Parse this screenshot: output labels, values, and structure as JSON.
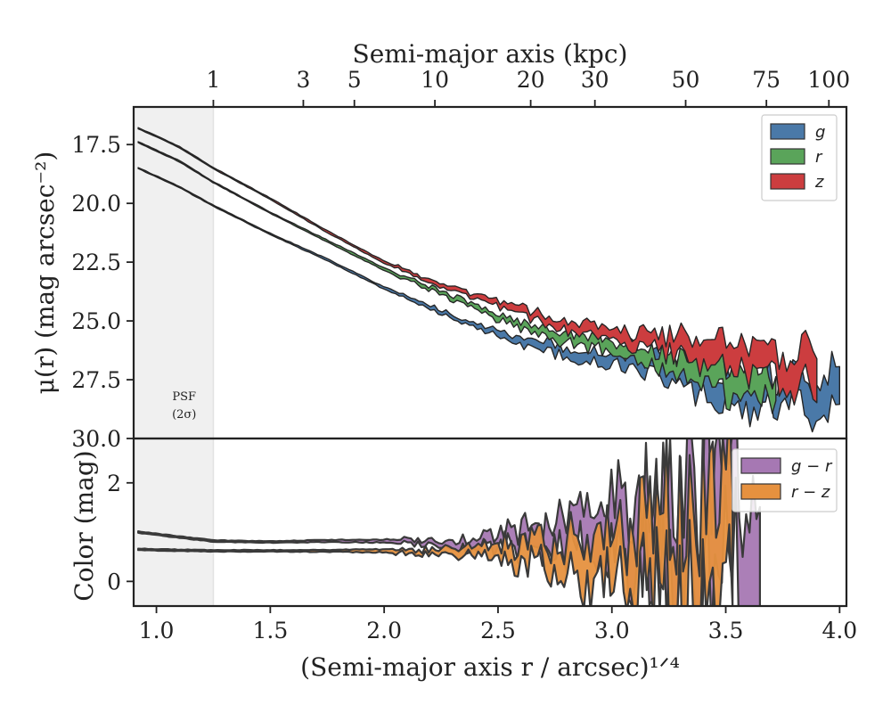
{
  "chart_data": [
    {
      "type": "area",
      "panel": "profile",
      "ylabel": "μ(r) (mag arcsec⁻²)",
      "top_xlabel": "Semi-major axis (kpc)",
      "top_ticks": [
        {
          "label": "1",
          "kpc": 1
        },
        {
          "label": "3",
          "kpc": 3
        },
        {
          "label": "5",
          "kpc": 5
        },
        {
          "label": "10",
          "kpc": 10
        },
        {
          "label": "20",
          "kpc": 20
        },
        {
          "label": "30",
          "kpc": 30
        },
        {
          "label": "50",
          "kpc": 50
        },
        {
          "label": "75",
          "kpc": 75
        },
        {
          "label": "100",
          "kpc": 100
        }
      ],
      "xlim": [
        0.9,
        4.03
      ],
      "ylim": [
        30.0,
        15.9
      ],
      "yticks": [
        "17.5",
        "20.0",
        "22.5",
        "25.0",
        "27.5",
        "30.0"
      ],
      "psf_region": {
        "x": [
          0.9,
          1.25
        ],
        "label_lines": [
          "PSF",
          "(2σ)"
        ]
      },
      "legend": {
        "placement": "top-right"
      },
      "series": [
        {
          "name": "g",
          "color": "#4a79a8",
          "x": [
            0.92,
            1.1,
            1.25,
            1.5,
            1.75,
            2.0,
            2.2,
            2.4,
            2.6,
            2.8,
            3.0,
            3.15,
            3.3,
            3.42,
            3.52,
            3.65,
            4.0
          ],
          "y": [
            18.5,
            19.3,
            20.1,
            21.3,
            22.4,
            23.6,
            24.4,
            25.2,
            25.8,
            26.3,
            26.6,
            26.9,
            27.2,
            27.7,
            28.1,
            28.0,
            27.9
          ],
          "width": [
            0.05,
            0.05,
            0.05,
            0.06,
            0.08,
            0.1,
            0.15,
            0.2,
            0.3,
            0.4,
            0.5,
            0.65,
            0.9,
            1.1,
            1.2,
            1.2,
            1.6
          ]
        },
        {
          "name": "r",
          "color": "#5aa45a",
          "x": [
            0.92,
            1.1,
            1.25,
            1.5,
            1.75,
            2.0,
            2.2,
            2.4,
            2.6,
            2.8,
            3.0,
            3.15,
            3.3,
            3.42,
            3.52,
            3.6,
            3.72
          ],
          "y": [
            17.4,
            18.2,
            19.1,
            20.4,
            21.6,
            22.8,
            23.6,
            24.4,
            25.2,
            25.7,
            26.1,
            26.5,
            26.8,
            27.2,
            27.6,
            27.5,
            27.8
          ],
          "width": [
            0.05,
            0.05,
            0.05,
            0.06,
            0.08,
            0.1,
            0.15,
            0.2,
            0.3,
            0.4,
            0.5,
            0.65,
            0.9,
            1.1,
            1.2,
            1.2,
            1.0
          ]
        },
        {
          "name": "z",
          "color": "#cc3d3f",
          "x": [
            0.92,
            1.1,
            1.25,
            1.5,
            1.75,
            2.0,
            2.2,
            2.4,
            2.6,
            2.8,
            3.0,
            3.15,
            3.3,
            3.45,
            3.55,
            3.7,
            3.9
          ],
          "y": [
            16.8,
            17.6,
            18.5,
            19.8,
            21.2,
            22.5,
            23.3,
            24.0,
            24.6,
            25.2,
            25.6,
            25.8,
            26.0,
            26.3,
            26.7,
            26.9,
            27.0
          ],
          "width": [
            0.05,
            0.05,
            0.05,
            0.06,
            0.08,
            0.1,
            0.15,
            0.2,
            0.3,
            0.4,
            0.5,
            0.65,
            0.9,
            1.1,
            1.2,
            1.2,
            1.6
          ]
        }
      ]
    },
    {
      "type": "area",
      "panel": "color",
      "ylabel": "Color (mag)",
      "xlabel": "(Semi-major axis r / arcsec)¹ᐟ⁴",
      "xlim": [
        0.9,
        4.03
      ],
      "xticks": [
        "1.0",
        "1.5",
        "2.0",
        "2.5",
        "3.0",
        "3.5",
        "4.0"
      ],
      "ylim": [
        -0.5,
        2.9
      ],
      "yticks": [
        "0",
        "2"
      ],
      "legend": {
        "placement": "top-right"
      },
      "series": [
        {
          "name": "g − r",
          "color": "#a678b3",
          "x": [
            0.92,
            1.1,
            1.25,
            1.5,
            1.75,
            2.0,
            2.2,
            2.4,
            2.6,
            2.8,
            3.0,
            3.15,
            3.3,
            3.45,
            3.55,
            3.65
          ],
          "y": [
            1.0,
            0.9,
            0.82,
            0.8,
            0.82,
            0.82,
            0.8,
            0.8,
            0.82,
            0.9,
            1.0,
            1.1,
            1.1,
            1.2,
            1.3,
            1.1
          ],
          "width": [
            0.03,
            0.03,
            0.03,
            0.03,
            0.04,
            0.06,
            0.1,
            0.2,
            0.4,
            0.7,
            1.0,
            1.4,
            1.8,
            2.4,
            2.6,
            3.0
          ]
        },
        {
          "name": "r − z",
          "color": "#e6913f",
          "x": [
            0.92,
            1.1,
            1.25,
            1.5,
            1.75,
            2.0,
            2.2,
            2.4,
            2.6,
            2.8,
            3.0,
            3.15,
            3.3,
            3.45,
            3.53
          ],
          "y": [
            0.65,
            0.63,
            0.62,
            0.62,
            0.62,
            0.62,
            0.6,
            0.6,
            0.58,
            0.55,
            0.55,
            0.58,
            0.6,
            0.7,
            0.75
          ],
          "width": [
            0.03,
            0.03,
            0.03,
            0.03,
            0.04,
            0.06,
            0.1,
            0.2,
            0.4,
            0.7,
            1.0,
            1.4,
            1.8,
            2.2,
            2.4
          ]
        }
      ]
    }
  ]
}
